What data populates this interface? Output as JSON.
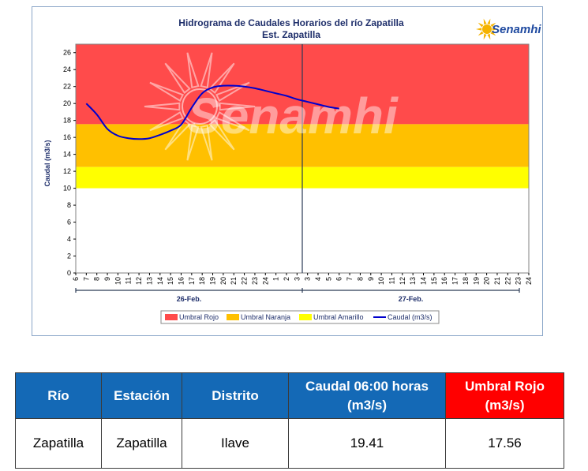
{
  "chart_data": {
    "type": "line",
    "title": "Hidrograma de Caudales Horarios del río Zapatilla",
    "subtitle": "Est. Zapatilla",
    "ylabel": "Caudal  (m3/s)",
    "ylim": [
      0,
      27
    ],
    "yticks": [
      "0",
      "2",
      "4",
      "6",
      "8",
      "10",
      "12",
      "14",
      "16",
      "18",
      "20",
      "22",
      "24",
      "26"
    ],
    "xtick_labels": [
      "6",
      "7",
      "8",
      "9",
      "10",
      "11",
      "12",
      "13",
      "14",
      "15",
      "16",
      "17",
      "18",
      "19",
      "20",
      "21",
      "22",
      "23",
      "24",
      "1",
      "2",
      "3",
      "3",
      "4",
      "5",
      "6",
      "7",
      "8",
      "9",
      "10",
      "11",
      "12",
      "13",
      "14",
      "15",
      "16",
      "17",
      "18",
      "19",
      "20",
      "21",
      "22",
      "23",
      "24"
    ],
    "day_labels": [
      "26-Feb.",
      "27-Feb."
    ],
    "divider_between": [
      "3",
      "3"
    ],
    "thresholds": [
      {
        "name": "Umbral Rojo",
        "from": 17.56,
        "to": 27,
        "color": "#ff4b4b"
      },
      {
        "name": "Umbral Naranja",
        "from": 12.5,
        "to": 17.56,
        "color": "#ffc000"
      },
      {
        "name": "Umbral Amarillo",
        "from": 10,
        "to": 12.5,
        "color": "#ffff00"
      }
    ],
    "series": [
      {
        "name": "Caudal (m3/s)",
        "color": "#0000cc",
        "x": [
          "7",
          "8",
          "9",
          "10",
          "11",
          "12",
          "13",
          "14",
          "15",
          "16",
          "17",
          "18",
          "19",
          "20",
          "21",
          "22",
          "23",
          "24",
          "1",
          "2",
          "3",
          "4",
          "5",
          "6",
          "7"
        ],
        "values": [
          20.0,
          18.7,
          17.0,
          16.2,
          15.9,
          15.8,
          15.9,
          16.3,
          16.8,
          17.5,
          19.5,
          21.2,
          21.9,
          22.1,
          22.1,
          22.0,
          21.8,
          21.5,
          21.2,
          20.9,
          20.5,
          20.2,
          19.9,
          19.6,
          19.4
        ]
      }
    ],
    "legend": [
      "Umbral Rojo",
      "Umbral Naranja",
      "Umbral Amarillo",
      "Caudal (m3/s)"
    ],
    "legend_placement": "bottom",
    "grid": false
  },
  "logo": {
    "text": "Senamhi"
  },
  "watermark": {
    "text": "Senamhi"
  },
  "table": {
    "headers": [
      "Río",
      "Estación",
      "Distrito",
      "Caudal  06:00 horas (m3/s)",
      "Umbral Rojo (m3/s)"
    ],
    "rows": [
      [
        "Zapatilla",
        "Zapatilla",
        "Ilave",
        "19.41",
        "17.56"
      ]
    ]
  }
}
